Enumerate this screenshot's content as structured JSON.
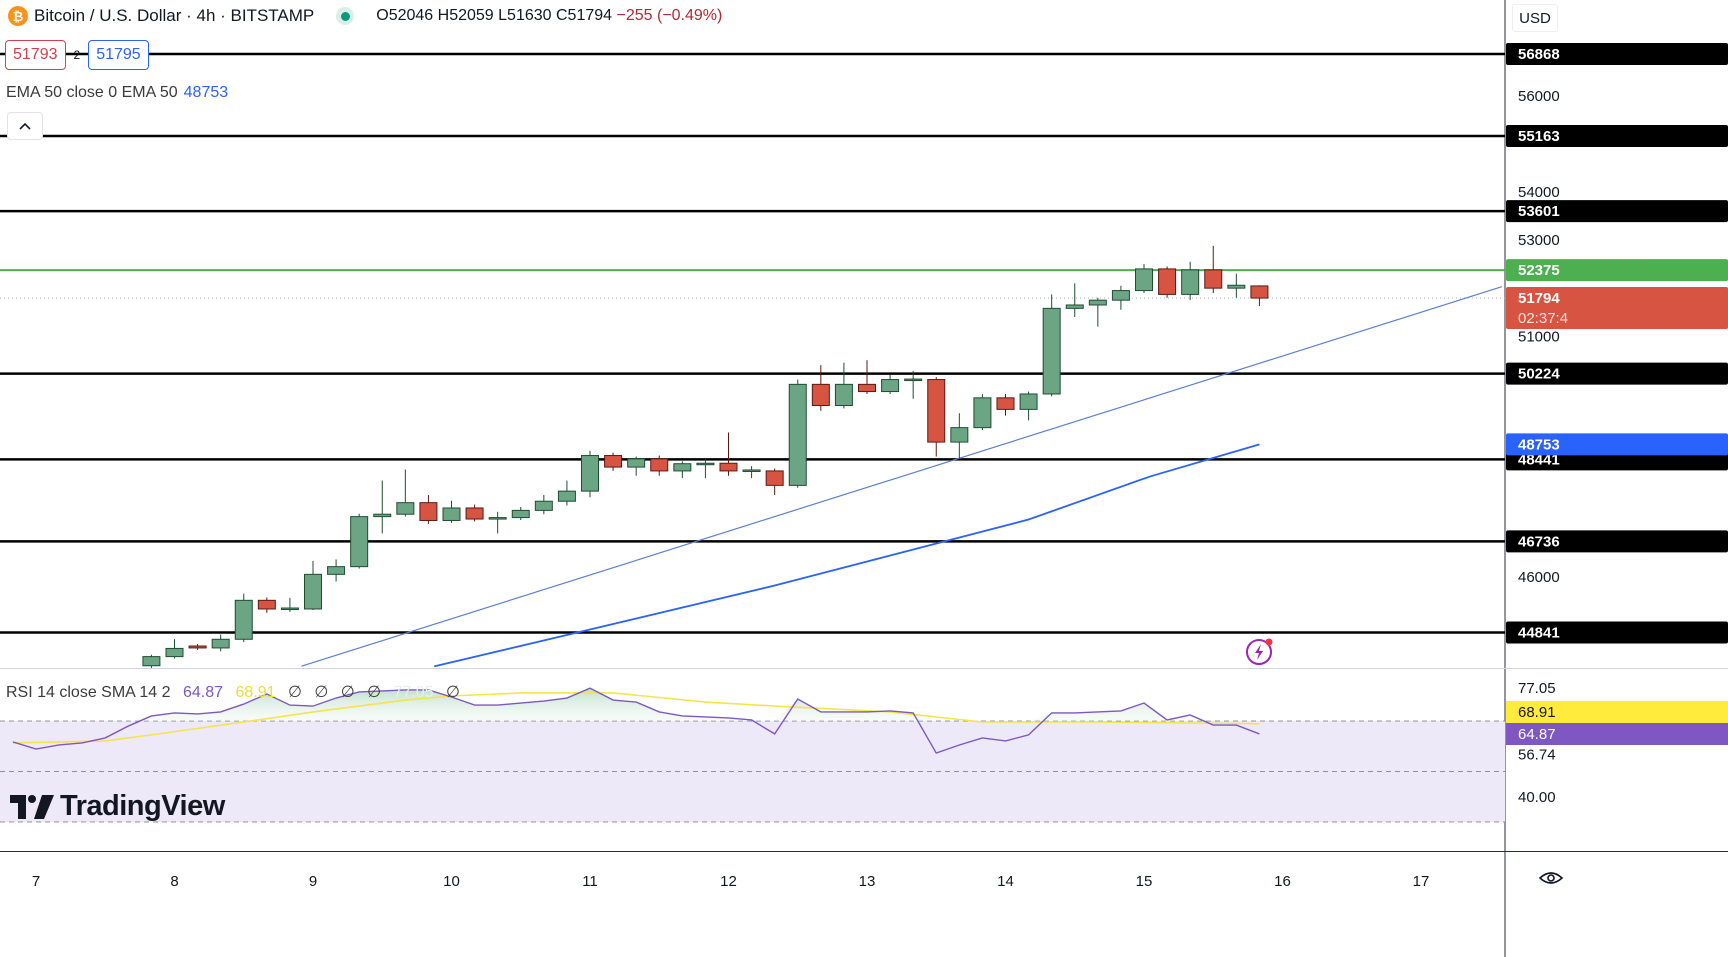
{
  "header": {
    "symbol_title": "Bitcoin / U.S. Dollar · 4h · BITSTAMP",
    "coin_glyph": "₿",
    "ohlc": {
      "open": "O52046",
      "high": "H52059",
      "low": "L51630",
      "close": "C51794",
      "change": "−255 (−0.49%)"
    }
  },
  "trade": {
    "sell_price": "51793",
    "quantity": "2",
    "buy_price": "51795"
  },
  "ema_legend": {
    "label": "EMA 50 close 0 EMA 50",
    "value": "48753"
  },
  "rsi_legend": {
    "label": "RSI 14 close SMA 14 2",
    "rsi_value": "64.87",
    "sma_value": "68.91",
    "empty1": "∅",
    "empty2": "∅",
    "empty3": "∅",
    "empty4": "∅",
    "max_value": "77.05",
    "empty5": "∅"
  },
  "logo_text": "TradingView",
  "currency": "USD",
  "icons": {
    "collapse": "chevron-up-icon",
    "live": "market-open-dot-icon",
    "bolt": "flash-alert-icon",
    "settings": "eye-settings-icon"
  },
  "colors": {
    "up": "#6ba583",
    "down": "#d75442",
    "ema": "#2962ff",
    "trendline": "#5b7fd6",
    "support_resistance": "#000000",
    "highlight_level": "#4caf50",
    "rsi": "#7e57c2",
    "rsi_sma": "#f5e44a",
    "rsi_band": "#ede9f8"
  },
  "chart_data": [
    {
      "type": "candlestick",
      "title": "Bitcoin / U.S. Dollar · 4h · BITSTAMP",
      "x_ticks": [
        "7",
        "8",
        "9",
        "10",
        "11",
        "12",
        "13",
        "14",
        "15",
        "16",
        "17"
      ],
      "y_ticks": [
        "56000",
        "54000",
        "53000",
        "51000",
        "46000"
      ],
      "ylim": [
        44136,
        57900
      ],
      "candles_columns": [
        "time",
        "open",
        "high",
        "low",
        "close"
      ],
      "candles": [
        [
          "7 20:00",
          44150,
          44380,
          44100,
          44340
        ],
        [
          "8 00:00",
          44340,
          44700,
          44300,
          44510
        ],
        [
          "8 04:00",
          44560,
          44600,
          44480,
          44520
        ],
        [
          "8 08:00",
          44520,
          44800,
          44450,
          44700
        ],
        [
          "8 12:00",
          44700,
          45650,
          44640,
          45510
        ],
        [
          "8 16:00",
          45510,
          45570,
          45250,
          45330
        ],
        [
          "8 20:00",
          45330,
          45560,
          45270,
          45350
        ],
        [
          "9 00:00",
          45330,
          46330,
          45310,
          46050
        ],
        [
          "9 04:00",
          46050,
          46360,
          45900,
          46210
        ],
        [
          "9 08:00",
          46210,
          47310,
          46170,
          47250
        ],
        [
          "9 12:00",
          47250,
          48000,
          46900,
          47300
        ],
        [
          "9 16:00",
          47300,
          48230,
          47250,
          47540
        ],
        [
          "9 20:00",
          47540,
          47700,
          47100,
          47170
        ],
        [
          "10 00:00",
          47170,
          47580,
          47120,
          47430
        ],
        [
          "10 04:00",
          47430,
          47500,
          47150,
          47200
        ],
        [
          "10 08:00",
          47200,
          47350,
          46900,
          47230
        ],
        [
          "10 12:00",
          47230,
          47450,
          47180,
          47380
        ],
        [
          "10 16:00",
          47380,
          47700,
          47300,
          47570
        ],
        [
          "10 20:00",
          47570,
          48000,
          47480,
          47780
        ],
        [
          "11 00:00",
          47780,
          48620,
          47650,
          48520
        ],
        [
          "11 04:00",
          48520,
          48580,
          48200,
          48280
        ],
        [
          "11 08:00",
          48280,
          48500,
          48100,
          48450
        ],
        [
          "11 12:00",
          48450,
          48520,
          48100,
          48200
        ],
        [
          "11 16:00",
          48200,
          48400,
          48050,
          48350
        ],
        [
          "11 20:00",
          48350,
          48450,
          48050,
          48360
        ],
        [
          "12 00:00",
          48360,
          49000,
          48100,
          48200
        ],
        [
          "12 04:00",
          48200,
          48300,
          48050,
          48220
        ],
        [
          "12 08:00",
          48200,
          48250,
          47700,
          47900
        ],
        [
          "12 12:00",
          47900,
          50100,
          47850,
          50000
        ],
        [
          "12 16:00",
          50000,
          50400,
          49450,
          49560
        ],
        [
          "12 20:00",
          49560,
          50450,
          49500,
          50000
        ],
        [
          "13 00:00",
          50000,
          50500,
          49800,
          49850
        ],
        [
          "13 04:00",
          49850,
          50200,
          49800,
          50100
        ],
        [
          "13 08:00",
          50100,
          50280,
          49700,
          50110
        ],
        [
          "13 12:00",
          50100,
          50150,
          48500,
          48800
        ],
        [
          "13 16:00",
          48800,
          49400,
          48450,
          49100
        ],
        [
          "13 20:00",
          49100,
          49800,
          49050,
          49720
        ],
        [
          "14 00:00",
          49720,
          49800,
          49350,
          49480
        ],
        [
          "14 04:00",
          49480,
          49850,
          49250,
          49800
        ],
        [
          "14 08:00",
          49800,
          51870,
          49750,
          51580
        ],
        [
          "14 12:00",
          51580,
          52100,
          51400,
          51650
        ],
        [
          "14 16:00",
          51650,
          51800,
          51200,
          51750
        ],
        [
          "14 20:00",
          51750,
          52050,
          51550,
          51950
        ],
        [
          "15 00:00",
          51950,
          52500,
          51900,
          52400
        ],
        [
          "15 04:00",
          52400,
          52450,
          51800,
          51870
        ],
        [
          "15 08:00",
          51870,
          52550,
          51750,
          52380
        ],
        [
          "15 12:00",
          52380,
          52880,
          51900,
          52000
        ],
        [
          "15 16:00",
          52000,
          52300,
          51800,
          52060
        ],
        [
          "15 20:00",
          52046,
          52059,
          51630,
          51794
        ]
      ],
      "horizontal_levels": [
        56868,
        55163,
        53601,
        50224,
        48441,
        46736,
        44841
      ],
      "highlight_level": 52375,
      "last_price": 51794,
      "countdown": "02:37:4",
      "trendline": [
        {
          "time": "8 22:00",
          "price": 44140
        },
        {
          "time": "17 14:00",
          "price": 52030
        }
      ],
      "ema": {
        "name": "EMA 50",
        "last": 48753,
        "points": [
          [
            "9 21:00",
            44136
          ],
          [
            "11 02:00",
            44960
          ],
          [
            "12 08:00",
            45818
          ],
          [
            "14 04:00",
            47190
          ],
          [
            "15 01:00",
            48083
          ],
          [
            "15 20:00",
            48753
          ]
        ]
      }
    },
    {
      "type": "line",
      "title": "RSI 14 close SMA 14 2",
      "y_ticks": [
        "77.05",
        "56.74",
        "40.00"
      ],
      "levels": [
        70,
        50,
        30
      ],
      "ylim": [
        23,
        81
      ],
      "last_rsi": "64.87",
      "last_sma": "68.91",
      "rsi": [
        [
          "6 20:00",
          61.7
        ],
        [
          "7 00:00",
          58.9
        ],
        [
          "7 04:00",
          60.5
        ],
        [
          "7 08:00",
          61.3
        ],
        [
          "7 12:00",
          63.3
        ],
        [
          "7 16:00",
          68
        ],
        [
          "7 20:00",
          72
        ],
        [
          "8 00:00",
          73.2
        ],
        [
          "8 04:00",
          72.8
        ],
        [
          "8 08:00",
          73.6
        ],
        [
          "8 12:00",
          76.7
        ],
        [
          "8 16:00",
          80.7
        ],
        [
          "8 20:00",
          76.3
        ],
        [
          "9 00:00",
          75.9
        ],
        [
          "9 04:00",
          79.1
        ],
        [
          "9 08:00",
          81.5
        ],
        [
          "9 12:00",
          81.9
        ],
        [
          "9 16:00",
          82.3
        ],
        [
          "9 20:00",
          82.3
        ],
        [
          "10 00:00",
          79.5
        ],
        [
          "10 04:00",
          76.3
        ],
        [
          "10 08:00",
          76.3
        ],
        [
          "10 12:00",
          77.1
        ],
        [
          "10 16:00",
          77.9
        ],
        [
          "10 20:00",
          79.1
        ],
        [
          "11 00:00",
          83
        ],
        [
          "11 04:00",
          78.3
        ],
        [
          "11 08:00",
          77.5
        ],
        [
          "11 12:00",
          73.6
        ],
        [
          "11 16:00",
          72
        ],
        [
          "11 20:00",
          71.6
        ],
        [
          "12 00:00",
          71.2
        ],
        [
          "12 04:00",
          70.4
        ],
        [
          "12 08:00",
          64.9
        ],
        [
          "12 12:00",
          78.7
        ],
        [
          "12 16:00",
          73.6
        ],
        [
          "12 20:00",
          73.6
        ],
        [
          "13 00:00",
          73.6
        ],
        [
          "13 04:00",
          74
        ],
        [
          "13 08:00",
          73.2
        ],
        [
          "13 12:00",
          57.3
        ],
        [
          "13 16:00",
          60.5
        ],
        [
          "13 20:00",
          63.3
        ],
        [
          "14 00:00",
          62.1
        ],
        [
          "14 04:00",
          64.5
        ],
        [
          "14 08:00",
          73.2
        ],
        [
          "14 12:00",
          73.2
        ],
        [
          "14 16:00",
          73.6
        ],
        [
          "14 20:00",
          74
        ],
        [
          "15 00:00",
          77.1
        ],
        [
          "15 04:00",
          70.4
        ],
        [
          "15 08:00",
          72.4
        ],
        [
          "15 12:00",
          68.4
        ],
        [
          "15 16:00",
          68.4
        ],
        [
          "15 20:00",
          64.87
        ]
      ],
      "sma": [
        [
          "6 20:00",
          61.3
        ],
        [
          "7 12:00",
          62.1
        ],
        [
          "7 20:00",
          64.5
        ],
        [
          "8 12:00",
          69.6
        ],
        [
          "9 00:00",
          73.6
        ],
        [
          "9 16:00",
          78.3
        ],
        [
          "10 00:00",
          79.9
        ],
        [
          "10 12:00",
          81.1
        ],
        [
          "11 04:00",
          81.1
        ],
        [
          "11 20:00",
          77.5
        ],
        [
          "12 08:00",
          75.9
        ],
        [
          "13 04:00",
          73.6
        ],
        [
          "13 20:00",
          69.6
        ],
        [
          "14 16:00",
          69.6
        ],
        [
          "15 20:00",
          68.91
        ]
      ]
    }
  ]
}
